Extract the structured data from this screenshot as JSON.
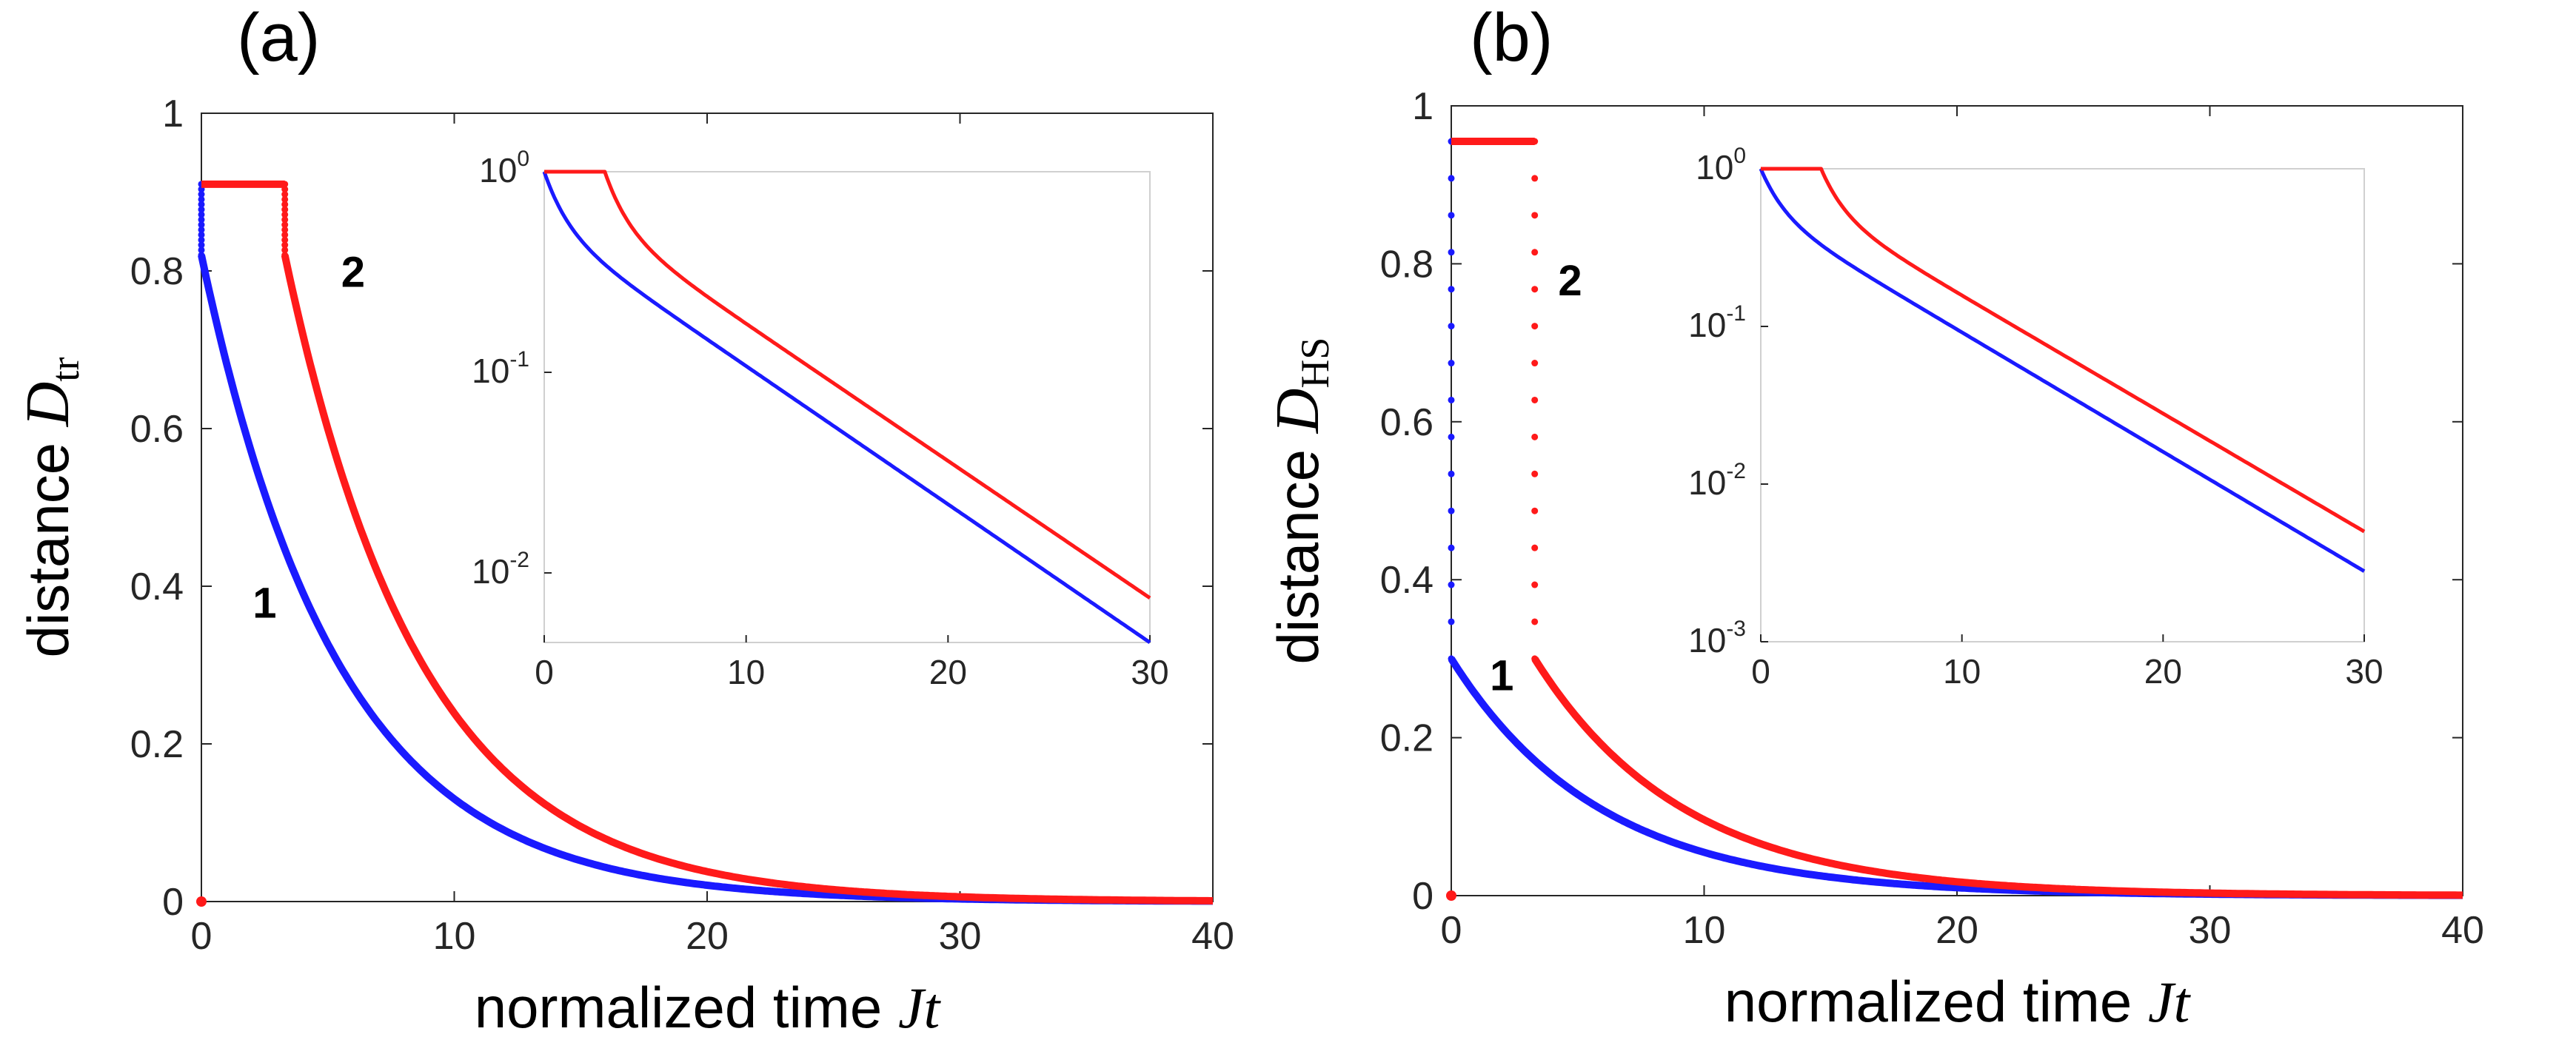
{
  "colors": {
    "curve1": "#1a1aff",
    "curve2": "#ff1a1a",
    "axis": "#262626",
    "box": "#d0d0d0"
  },
  "chart_data": [
    {
      "panel": "(a)",
      "type": "line",
      "xlabel_text": "normalized time ",
      "xlabel_var": "Jt",
      "ylabel_text": "distance ",
      "ylabel_sym": "D",
      "ylabel_sub": "tr",
      "xlim": [
        0,
        40
      ],
      "ylim": [
        0,
        1
      ],
      "xticks": [
        0,
        10,
        20,
        30,
        40
      ],
      "yticks": [
        0,
        0.2,
        0.4,
        0.6,
        0.8,
        1
      ],
      "xtick_labels": [
        "0",
        "10",
        "20",
        "30",
        "40"
      ],
      "ytick_labels": [
        "0",
        "0.2",
        "0.4",
        "0.6",
        "0.8",
        "1"
      ],
      "series": [
        {
          "name": "1",
          "t0": 0,
          "plateau": 0.91,
          "drop_to": 0.82,
          "rate": 0.184
        },
        {
          "name": "2",
          "t0": 3.3,
          "plateau": 0.91,
          "drop_to": 0.82,
          "rate": 0.184
        }
      ],
      "curve_labels": [
        {
          "text": "1",
          "x": 2.5,
          "y": 0.36
        },
        {
          "text": "2",
          "x": 6.0,
          "y": 0.78
        }
      ],
      "inset": {
        "xlim": [
          0,
          30
        ],
        "ylim": [
          0.0045,
          1.0
        ],
        "xticks": [
          0,
          10,
          20,
          30
        ],
        "xtick_labels": [
          "0",
          "10",
          "20",
          "30"
        ],
        "yticks": [
          {
            "value": 1,
            "base": "10",
            "exp": "0"
          },
          {
            "value": 0.1,
            "base": "10",
            "exp": "-1"
          },
          {
            "value": 0.01,
            "base": "10",
            "exp": "-2"
          }
        ],
        "series": [
          {
            "name": "1",
            "t0": 0,
            "end_value": 0.0045
          },
          {
            "name": "2",
            "t0": 3.0,
            "end_value": 0.0075
          }
        ]
      }
    },
    {
      "panel": "(b)",
      "type": "line",
      "xlabel_text": "normalized time ",
      "xlabel_var": "Jt",
      "ylabel_text": "distance ",
      "ylabel_sym": "D",
      "ylabel_sub": "HS",
      "xlim": [
        0,
        40
      ],
      "ylim": [
        0,
        1
      ],
      "xticks": [
        0,
        10,
        20,
        30,
        40
      ],
      "yticks": [
        0,
        0.2,
        0.4,
        0.6,
        0.8,
        1
      ],
      "xtick_labels": [
        "0",
        "10",
        "20",
        "30",
        "40"
      ],
      "ytick_labels": [
        "0",
        "0.2",
        "0.4",
        "0.6",
        "0.8",
        "1"
      ],
      "series": [
        {
          "name": "1",
          "t0": 0,
          "plateau": 0.955,
          "drop_to": 0.3,
          "rate": 0.17
        },
        {
          "name": "2",
          "t0": 3.3,
          "plateau": 0.955,
          "drop_to": 0.3,
          "rate": 0.17
        }
      ],
      "curve_labels": [
        {
          "text": "1",
          "x": 2.0,
          "y": 0.26
        },
        {
          "text": "2",
          "x": 4.7,
          "y": 0.76
        }
      ],
      "inset": {
        "xlim": [
          0,
          30
        ],
        "ylim": [
          0.001,
          1.0
        ],
        "xticks": [
          0,
          10,
          20,
          30
        ],
        "xtick_labels": [
          "0",
          "10",
          "20",
          "30"
        ],
        "yticks": [
          {
            "value": 1,
            "base": "10",
            "exp": "0"
          },
          {
            "value": 0.1,
            "base": "10",
            "exp": "-1"
          },
          {
            "value": 0.01,
            "base": "10",
            "exp": "-2"
          },
          {
            "value": 0.001,
            "base": "10",
            "exp": "-3"
          }
        ],
        "series": [
          {
            "name": "1",
            "t0": 0,
            "end_value": 0.0028
          },
          {
            "name": "2",
            "t0": 3.0,
            "end_value": 0.005
          }
        ]
      }
    }
  ]
}
